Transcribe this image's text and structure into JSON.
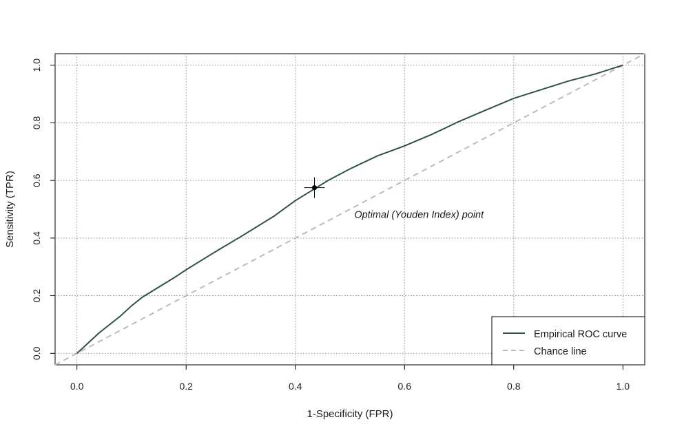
{
  "chart_data": {
    "type": "line",
    "title": "",
    "xlabel": "1-Specificity (FPR)",
    "ylabel": "Sensitivity (TPR)",
    "xlim": [
      -0.04,
      1.04
    ],
    "ylim": [
      -0.04,
      1.04
    ],
    "xticks": [
      "0.0",
      "0.2",
      "0.4",
      "0.6",
      "0.8",
      "1.0"
    ],
    "yticks": [
      "0.0",
      "0.2",
      "0.4",
      "0.6",
      "0.8",
      "1.0"
    ],
    "grid": true,
    "legend_position": "bottom-right",
    "series": [
      {
        "name": "Empirical ROC curve",
        "color": "#2f4f4f",
        "style": "solid",
        "x": [
          0.0,
          0.02,
          0.04,
          0.06,
          0.08,
          0.1,
          0.12,
          0.15,
          0.18,
          0.2,
          0.23,
          0.26,
          0.3,
          0.33,
          0.36,
          0.4,
          0.43,
          0.46,
          0.5,
          0.55,
          0.6,
          0.65,
          0.7,
          0.75,
          0.8,
          0.85,
          0.9,
          0.95,
          1.0
        ],
        "y": [
          0.0,
          0.035,
          0.07,
          0.1,
          0.13,
          0.165,
          0.195,
          0.23,
          0.265,
          0.29,
          0.325,
          0.36,
          0.405,
          0.44,
          0.475,
          0.53,
          0.565,
          0.6,
          0.64,
          0.685,
          0.72,
          0.76,
          0.805,
          0.845,
          0.885,
          0.915,
          0.945,
          0.97,
          1.0
        ]
      },
      {
        "name": "Chance line",
        "color": "#bbbbbb",
        "style": "dashed",
        "x": [
          -0.04,
          1.04
        ],
        "y": [
          -0.04,
          1.04
        ]
      }
    ],
    "optimal_point": {
      "x": 0.435,
      "y": 0.575
    },
    "annotation": {
      "text": "Optimal (Youden Index) point",
      "x": 0.508,
      "y": 0.47
    }
  }
}
